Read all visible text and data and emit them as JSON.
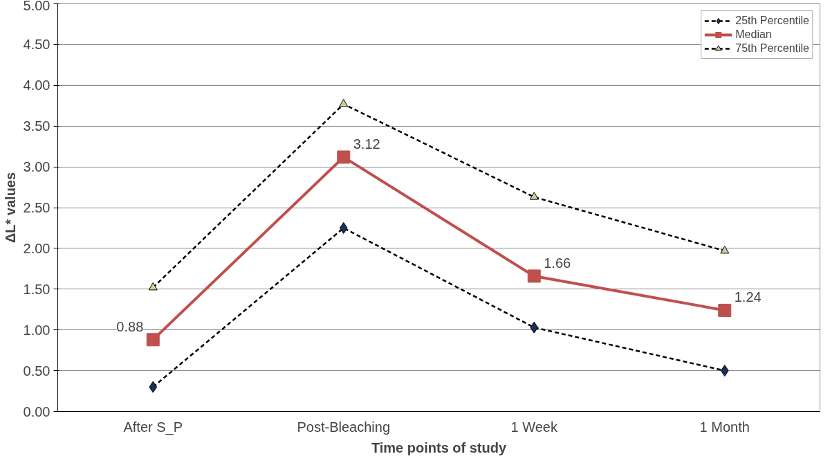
{
  "chart_data": {
    "type": "line",
    "xlabel": "Time points of study",
    "ylabel": "ΔL* values",
    "categories": [
      "After S_P",
      "Post-Bleaching",
      "1 Week",
      "1 Month"
    ],
    "series": [
      {
        "name": "25th Percentile",
        "color": "#000000",
        "colors": [
          "#1f2d5a",
          "#1f2d5a",
          "#1f2d5a",
          "#1f2d5a"
        ],
        "marker": "diamond",
        "line_style": "dashed",
        "values": [
          0.3,
          2.25,
          1.03,
          0.5
        ]
      },
      {
        "name": "Median",
        "color": "#c0504d",
        "marker": "square",
        "line_style": "solid",
        "values": [
          0.88,
          3.12,
          1.66,
          1.24
        ],
        "value_labels": [
          "0.88",
          "3.12",
          "1.66",
          "1.24"
        ]
      },
      {
        "name": "75th Percentile",
        "color": "#000000",
        "colors": [
          "#c3d69b",
          "#c3d69b",
          "#c3d69b",
          "#c3d69b"
        ],
        "marker": "triangle",
        "line_style": "dashed",
        "values": [
          1.52,
          3.77,
          2.63,
          1.97
        ]
      }
    ],
    "ylim": [
      0,
      5
    ],
    "yticks": [
      {
        "value": 0,
        "label": "0.00"
      },
      {
        "value": 0.5,
        "label": "0.50"
      },
      {
        "value": 1,
        "label": "1.00"
      },
      {
        "value": 1.5,
        "label": "1.50"
      },
      {
        "value": 2,
        "label": "2.00"
      },
      {
        "value": 2.5,
        "label": "2.50"
      },
      {
        "value": 3,
        "label": "3.00"
      },
      {
        "value": 3.5,
        "label": "3.50"
      },
      {
        "value": 4,
        "label": "4.00"
      },
      {
        "value": 4.5,
        "label": "4.50"
      },
      {
        "value": 5,
        "label": "5.00"
      }
    ],
    "grid": "y",
    "legend": "top right"
  }
}
